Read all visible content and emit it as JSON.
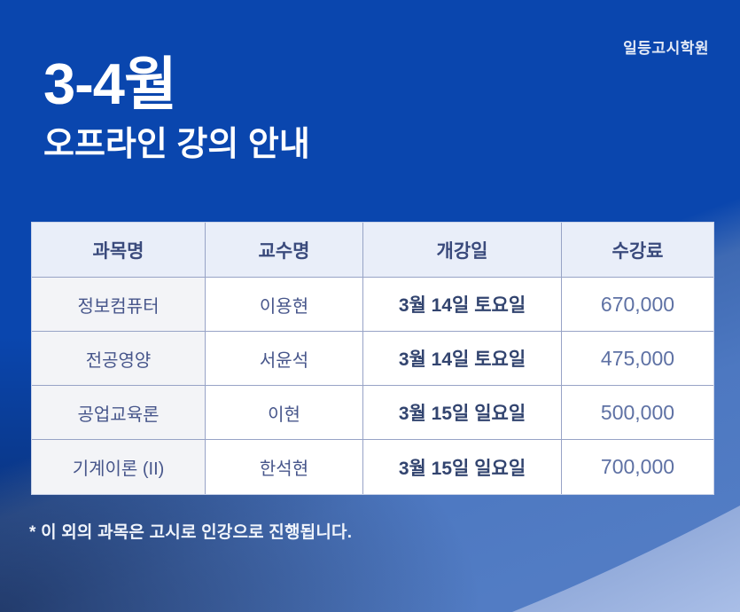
{
  "brand": {
    "logo_text": "일등고시학원"
  },
  "header": {
    "title": "3-4월",
    "subtitle": "오프라인 강의 안내"
  },
  "table": {
    "columns": [
      "과목명",
      "교수명",
      "개강일",
      "수강료"
    ],
    "rows": [
      {
        "subject": "정보컴퓨터",
        "professor": "이용현",
        "start_date": "3월 14일 토요일",
        "fee": "670,000"
      },
      {
        "subject": "전공영양",
        "professor": "서윤석",
        "start_date": "3월 14일 토요일",
        "fee": "475,000"
      },
      {
        "subject": "공업교육론",
        "professor": "이현",
        "start_date": "3월 15일 일요일",
        "fee": "500,000"
      },
      {
        "subject": "기계이론 (II)",
        "professor": "한석현",
        "start_date": "3월 15일 일요일",
        "fee": "700,000"
      }
    ]
  },
  "footnote": "* 이 외의 과목은 고시로 인강으로 진행됩니다.",
  "colors": {
    "background_blue": "#0a46ae",
    "steel_blue": "#4d78c1",
    "wedge_light_start": "#7d99cf",
    "wedge_light_end": "#a9bee7",
    "header_bg": "#e9eef9",
    "first_col_bg": "#f3f4f7",
    "header_text": "#3a4a7c",
    "body_text": "#47568b",
    "date_text": "#32446f",
    "fee_text": "#5e71a4",
    "footnote_text": "#f0f4fb"
  }
}
